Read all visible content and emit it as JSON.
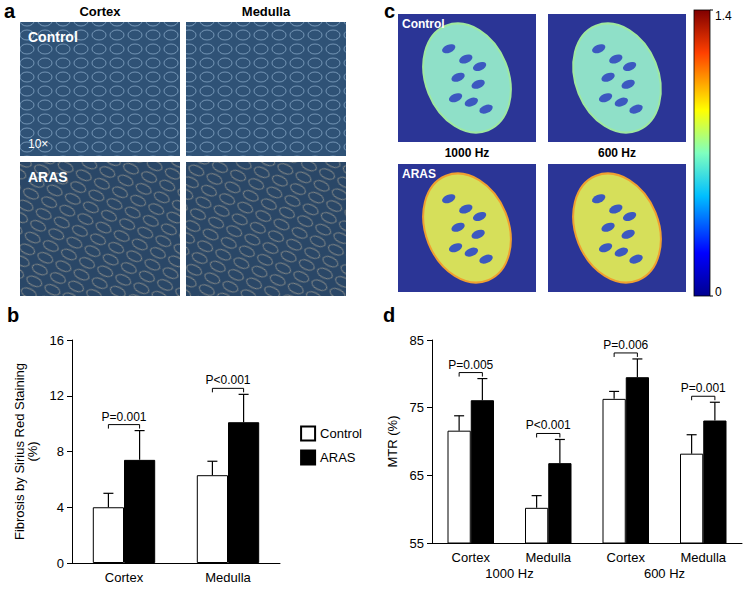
{
  "chart_data": [
    {
      "type": "bar",
      "title": "b",
      "categories": [
        "Cortex",
        "Medulla"
      ],
      "ylabel": "Fibrosis by Sirius Red Staining\n(%)",
      "ylim": [
        0,
        16
      ],
      "yticks": [
        0,
        4,
        8,
        12,
        16
      ],
      "series": [
        {
          "name": "Control",
          "color": "#ffffff",
          "values": [
            4.0,
            6.3
          ],
          "errors": [
            1.0,
            1.0
          ]
        },
        {
          "name": "ARAS",
          "color": "#000000",
          "values": [
            7.4,
            10.1
          ],
          "errors": [
            2.1,
            2.0
          ]
        }
      ],
      "annotations": [
        "P=0.001",
        "P<0.001"
      ],
      "legend": "right",
      "grid": false
    },
    {
      "type": "bar",
      "title": "d",
      "categories": [
        "Cortex",
        "Medulla",
        "Cortex",
        "Medulla"
      ],
      "category_groups": [
        "1000 Hz",
        "600 Hz"
      ],
      "ylabel": "MTR (%)",
      "ylim": [
        55,
        85
      ],
      "yticks": [
        55,
        65,
        75,
        85
      ],
      "series": [
        {
          "name": "Control",
          "color": "#ffffff",
          "values": [
            71.6,
            60.2,
            76.3,
            68.2
          ],
          "errors": [
            2.2,
            1.8,
            1.1,
            2.8
          ]
        },
        {
          "name": "ARAS",
          "color": "#000000",
          "values": [
            76.1,
            66.8,
            79.5,
            73.1
          ],
          "errors": [
            3.2,
            3.5,
            2.7,
            2.7
          ]
        }
      ],
      "annotations": [
        "P=0.005",
        "P<0.001",
        "P=0.006",
        "P=0.001"
      ],
      "grid": false
    }
  ],
  "images": [
    {
      "panel": "a",
      "columns": [
        "Cortex",
        "Medulla"
      ],
      "rows": [
        "Control",
        "ARAS"
      ],
      "magnification": "10×"
    },
    {
      "panel": "c",
      "columns": [
        "1000 Hz",
        "600 Hz"
      ],
      "rows": [
        "Control",
        "ARAS"
      ],
      "colorbar": {
        "range": [
          0,
          1.4
        ],
        "ticks": [
          0,
          1.4
        ]
      }
    }
  ]
}
